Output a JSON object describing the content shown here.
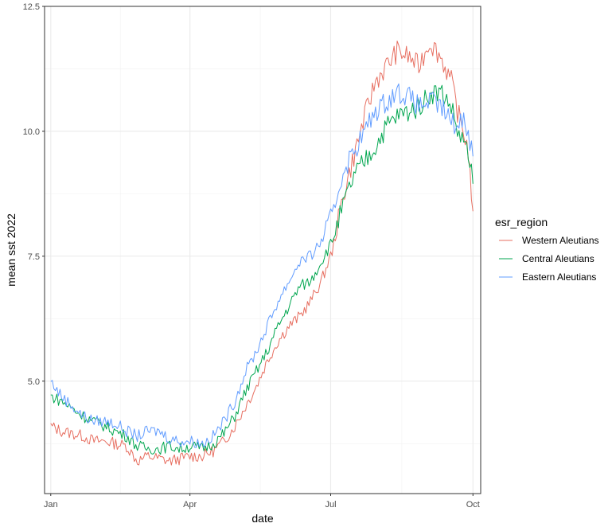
{
  "chart_data": {
    "type": "line",
    "xlabel": "date",
    "ylabel": "mean sst 2022",
    "x_range": [
      "2021-12-28",
      "2022-10-06"
    ],
    "x_ticks": [
      {
        "date": "2022-01-01",
        "label": "Jan"
      },
      {
        "date": "2022-04-01",
        "label": "Apr"
      },
      {
        "date": "2022-07-01",
        "label": "Jul"
      },
      {
        "date": "2022-10-01",
        "label": "Oct"
      }
    ],
    "y_ticks": [
      {
        "value": 5.0,
        "label": "5.0"
      },
      {
        "value": 7.5,
        "label": "7.5"
      },
      {
        "value": 10.0,
        "label": "10.0"
      },
      {
        "value": 12.5,
        "label": "12.5"
      }
    ],
    "ylim": [
      2.75,
      12.5
    ],
    "grid": true,
    "theme": "bw",
    "legend": {
      "title": "esr_region",
      "placement": "right"
    },
    "series": [
      {
        "name": "Western Aleutians",
        "color": "#E76F61",
        "points": [
          [
            "2022-01-01",
            4.1
          ],
          [
            "2022-01-08",
            4.0
          ],
          [
            "2022-01-15",
            3.95
          ],
          [
            "2022-01-22",
            3.9
          ],
          [
            "2022-01-29",
            3.8
          ],
          [
            "2022-02-05",
            3.8
          ],
          [
            "2022-02-12",
            3.75
          ],
          [
            "2022-02-19",
            3.7
          ],
          [
            "2022-02-26",
            3.4
          ],
          [
            "2022-03-05",
            3.5
          ],
          [
            "2022-03-12",
            3.45
          ],
          [
            "2022-03-19",
            3.4
          ],
          [
            "2022-03-26",
            3.45
          ],
          [
            "2022-04-02",
            3.5
          ],
          [
            "2022-04-09",
            3.5
          ],
          [
            "2022-04-16",
            3.6
          ],
          [
            "2022-04-23",
            3.8
          ],
          [
            "2022-04-30",
            4.1
          ],
          [
            "2022-05-07",
            4.5
          ],
          [
            "2022-05-14",
            4.9
          ],
          [
            "2022-05-21",
            5.4
          ],
          [
            "2022-05-28",
            5.8
          ],
          [
            "2022-06-04",
            6.1
          ],
          [
            "2022-06-11",
            6.3
          ],
          [
            "2022-06-18",
            6.6
          ],
          [
            "2022-06-25",
            7.0
          ],
          [
            "2022-07-02",
            7.6
          ],
          [
            "2022-07-09",
            8.7
          ],
          [
            "2022-07-16",
            9.5
          ],
          [
            "2022-07-23",
            10.3
          ],
          [
            "2022-07-30",
            11.0
          ],
          [
            "2022-08-06",
            11.3
          ],
          [
            "2022-08-13",
            11.6
          ],
          [
            "2022-08-20",
            11.5
          ],
          [
            "2022-08-27",
            11.3
          ],
          [
            "2022-09-03",
            11.8
          ],
          [
            "2022-09-10",
            11.5
          ],
          [
            "2022-09-17",
            11.0
          ],
          [
            "2022-09-21",
            10.4
          ],
          [
            "2022-09-25",
            10.0
          ],
          [
            "2022-09-28",
            9.6
          ],
          [
            "2022-10-01",
            8.4
          ]
        ]
      },
      {
        "name": "Central Aleutians",
        "color": "#00A64F",
        "points": [
          [
            "2022-01-01",
            4.7
          ],
          [
            "2022-01-08",
            4.6
          ],
          [
            "2022-01-15",
            4.45
          ],
          [
            "2022-01-22",
            4.3
          ],
          [
            "2022-01-29",
            4.2
          ],
          [
            "2022-02-05",
            4.1
          ],
          [
            "2022-02-12",
            4.0
          ],
          [
            "2022-02-19",
            3.9
          ],
          [
            "2022-02-26",
            3.7
          ],
          [
            "2022-03-05",
            3.65
          ],
          [
            "2022-03-12",
            3.65
          ],
          [
            "2022-03-19",
            3.7
          ],
          [
            "2022-03-26",
            3.65
          ],
          [
            "2022-04-02",
            3.7
          ],
          [
            "2022-04-09",
            3.65
          ],
          [
            "2022-04-16",
            3.75
          ],
          [
            "2022-04-23",
            3.95
          ],
          [
            "2022-04-30",
            4.3
          ],
          [
            "2022-05-07",
            4.8
          ],
          [
            "2022-05-14",
            5.2
          ],
          [
            "2022-05-21",
            5.6
          ],
          [
            "2022-05-28",
            6.1
          ],
          [
            "2022-06-04",
            6.5
          ],
          [
            "2022-06-11",
            6.9
          ],
          [
            "2022-06-18",
            7.0
          ],
          [
            "2022-06-25",
            7.4
          ],
          [
            "2022-07-02",
            7.8
          ],
          [
            "2022-07-09",
            8.5
          ],
          [
            "2022-07-16",
            9.1
          ],
          [
            "2022-07-23",
            9.4
          ],
          [
            "2022-07-30",
            9.7
          ],
          [
            "2022-08-06",
            10.1
          ],
          [
            "2022-08-13",
            10.3
          ],
          [
            "2022-08-20",
            10.4
          ],
          [
            "2022-08-27",
            10.5
          ],
          [
            "2022-09-03",
            10.75
          ],
          [
            "2022-09-10",
            10.8
          ],
          [
            "2022-09-17",
            10.5
          ],
          [
            "2022-09-21",
            10.0
          ],
          [
            "2022-09-25",
            9.8
          ],
          [
            "2022-09-28",
            9.5
          ],
          [
            "2022-10-01",
            8.95
          ]
        ]
      },
      {
        "name": "Eastern Aleutians",
        "color": "#619CFF",
        "points": [
          [
            "2022-01-01",
            5.0
          ],
          [
            "2022-01-08",
            4.7
          ],
          [
            "2022-01-15",
            4.5
          ],
          [
            "2022-01-22",
            4.3
          ],
          [
            "2022-01-29",
            4.2
          ],
          [
            "2022-02-05",
            4.2
          ],
          [
            "2022-02-12",
            4.15
          ],
          [
            "2022-02-19",
            4.0
          ],
          [
            "2022-02-26",
            3.9
          ],
          [
            "2022-03-05",
            4.0
          ],
          [
            "2022-03-12",
            4.0
          ],
          [
            "2022-03-19",
            3.85
          ],
          [
            "2022-03-26",
            3.8
          ],
          [
            "2022-04-02",
            3.8
          ],
          [
            "2022-04-09",
            3.75
          ],
          [
            "2022-04-16",
            3.9
          ],
          [
            "2022-04-23",
            4.2
          ],
          [
            "2022-04-30",
            4.6
          ],
          [
            "2022-05-07",
            5.2
          ],
          [
            "2022-05-14",
            5.6
          ],
          [
            "2022-05-21",
            6.1
          ],
          [
            "2022-05-28",
            6.6
          ],
          [
            "2022-06-04",
            7.0
          ],
          [
            "2022-06-11",
            7.4
          ],
          [
            "2022-06-18",
            7.5
          ],
          [
            "2022-06-25",
            7.8
          ],
          [
            "2022-07-02",
            8.3
          ],
          [
            "2022-07-09",
            9.2
          ],
          [
            "2022-07-16",
            9.6
          ],
          [
            "2022-07-23",
            10.0
          ],
          [
            "2022-07-30",
            10.4
          ],
          [
            "2022-08-06",
            10.6
          ],
          [
            "2022-08-13",
            10.8
          ],
          [
            "2022-08-20",
            10.7
          ],
          [
            "2022-08-27",
            10.5
          ],
          [
            "2022-09-03",
            10.6
          ],
          [
            "2022-09-10",
            10.5
          ],
          [
            "2022-09-17",
            10.2
          ],
          [
            "2022-09-21",
            10.1
          ],
          [
            "2022-09-25",
            10.3
          ],
          [
            "2022-09-28",
            10.0
          ],
          [
            "2022-10-01",
            9.5
          ]
        ]
      }
    ]
  }
}
